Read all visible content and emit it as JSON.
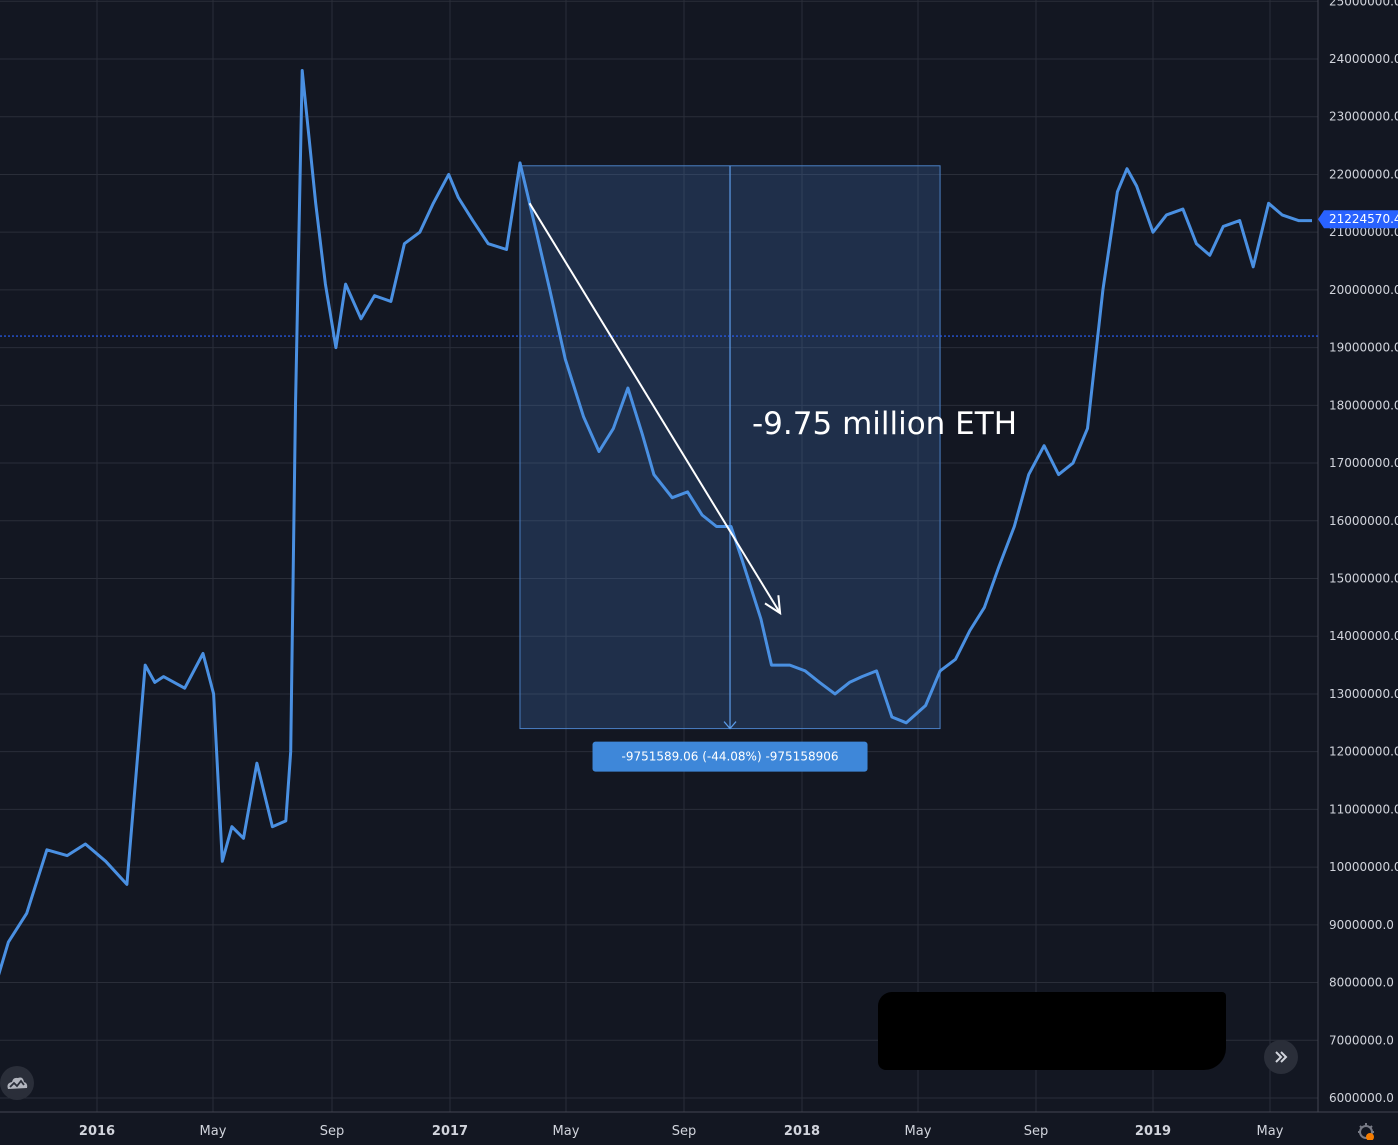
{
  "chart_data": {
    "type": "line",
    "title": "",
    "xlabel": "",
    "ylabel": "",
    "ylim": [
      6000000,
      25000000
    ],
    "y_ticks": [
      "6000000.0",
      "7000000.0",
      "8000000.0",
      "9000000.0",
      "10000000.0",
      "11000000.0",
      "12000000.0",
      "13000000.0",
      "14000000.0",
      "15000000.0",
      "16000000.0",
      "17000000.0",
      "18000000.0",
      "19000000.0",
      "20000000.0",
      "21000000.0",
      "22000000.0",
      "23000000.0",
      "24000000.0",
      "25000000.0"
    ],
    "x_ticks": [
      {
        "label": "2016",
        "year": true
      },
      {
        "label": "May",
        "year": false
      },
      {
        "label": "Sep",
        "year": false
      },
      {
        "label": "2017",
        "year": true
      },
      {
        "label": "May",
        "year": false
      },
      {
        "label": "Sep",
        "year": false
      },
      {
        "label": "2018",
        "year": true
      },
      {
        "label": "May",
        "year": false
      },
      {
        "label": "Sep",
        "year": false
      },
      {
        "label": "2019",
        "year": true
      },
      {
        "label": "May",
        "year": false
      }
    ],
    "grid": true,
    "series": [
      {
        "name": "",
        "color": "#4a90e2",
        "x": [
          "2015-08-20",
          "2015-09-01",
          "2015-09-15",
          "2015-10-01",
          "2015-10-20",
          "2015-11-10",
          "2015-12-01",
          "2015-12-20",
          "2016-01-10",
          "2016-02-01",
          "2016-02-20",
          "2016-03-01",
          "2016-03-10",
          "2016-04-01",
          "2016-04-20",
          "2016-05-01",
          "2016-05-10",
          "2016-05-20",
          "2016-06-01",
          "2016-06-15",
          "2016-07-01",
          "2016-07-15",
          "2016-07-20",
          "2016-07-25",
          "2016-08-01",
          "2016-08-15",
          "2016-08-25",
          "2016-09-01",
          "2016-09-05",
          "2016-09-15",
          "2016-10-01",
          "2016-10-15",
          "2016-11-01",
          "2016-11-15",
          "2016-12-01",
          "2016-12-15",
          "2016-12-31",
          "2017-01-10",
          "2017-01-25",
          "2017-02-10",
          "2017-03-01",
          "2017-03-15",
          "2017-03-25",
          "2017-04-01",
          "2017-04-15",
          "2017-05-01",
          "2017-05-20",
          "2017-06-05",
          "2017-06-20",
          "2017-07-05",
          "2017-07-20",
          "2017-08-01",
          "2017-08-20",
          "2017-09-05",
          "2017-09-20",
          "2017-10-05",
          "2017-10-20",
          "2017-11-01",
          "2017-11-20",
          "2017-12-01",
          "2017-12-20",
          "2018-01-05",
          "2018-01-20",
          "2018-02-05",
          "2018-02-20",
          "2018-03-05",
          "2018-03-20",
          "2018-04-05",
          "2018-04-20",
          "2018-05-10",
          "2018-05-25",
          "2018-06-10",
          "2018-06-25",
          "2018-07-10",
          "2018-07-25",
          "2018-08-10",
          "2018-08-25",
          "2018-09-10",
          "2018-09-25",
          "2018-10-10",
          "2018-10-25",
          "2018-11-10",
          "2018-11-25",
          "2018-12-05",
          "2018-12-15",
          "2019-01-01",
          "2019-01-15",
          "2019-02-01",
          "2019-02-15",
          "2019-03-01",
          "2019-03-15",
          "2019-04-01",
          "2019-04-15",
          "2019-05-01",
          "2019-05-15",
          "2019-06-01",
          "2019-06-15"
        ],
        "values": [
          7700000,
          7700000,
          7800000,
          8700000,
          9200000,
          10300000,
          10200000,
          10400000,
          10100000,
          9700000,
          13500000,
          13200000,
          13300000,
          13100000,
          13700000,
          13000000,
          10100000,
          10700000,
          10500000,
          11800000,
          10700000,
          10800000,
          12000000,
          18000000,
          23800000,
          21500000,
          20100000,
          19400000,
          19000000,
          20100000,
          19500000,
          19900000,
          19800000,
          20800000,
          21000000,
          21500000,
          22000000,
          21600000,
          21200000,
          20800000,
          20700000,
          22200000,
          21500000,
          21000000,
          20000000,
          18800000,
          17800000,
          17200000,
          17600000,
          18300000,
          17500000,
          16800000,
          16400000,
          16500000,
          16100000,
          15900000,
          15900000,
          15300000,
          14300000,
          13500000,
          13500000,
          13400000,
          13200000,
          13000000,
          13200000,
          13300000,
          13400000,
          12600000,
          12500000,
          12800000,
          13400000,
          13600000,
          14100000,
          14500000,
          15200000,
          15900000,
          16800000,
          17300000,
          16800000,
          17000000,
          17600000,
          20000000,
          21700000,
          22100000,
          21800000,
          21000000,
          21300000,
          21400000,
          20800000,
          20600000,
          21100000,
          21200000,
          20400000,
          21500000,
          21300000,
          21200000,
          21200000
        ]
      }
    ],
    "current_value_tag": "21224570.4",
    "horizontal_marker_value": 19200000,
    "annotation_text": "-9.75 million ETH",
    "measure_label": "-9751589.06 (-44.08%) -975158906",
    "measure_from": {
      "x": "2017-03-15",
      "y": 22150000
    },
    "measure_to": {
      "x": "2018-05-25",
      "y": 12400000
    },
    "arrow_from": {
      "x": "2017-03-25",
      "y": 21500000
    },
    "arrow_to": {
      "x": "2017-12-10",
      "y": 14400000
    },
    "colors": {
      "background": "#131722",
      "grid": "#2a2e39",
      "line": "#4a90e2",
      "measure_fill": "rgba(66,120,196,0.25)",
      "measure_label_bg": "#3e87d9",
      "marker_line": "#2962ff",
      "price_tag_bg": "#2962ff"
    }
  },
  "icons": {
    "logo": "tradingview-cloud-icon",
    "scroll": "double-chevron-right-icon",
    "settings": "gear-icon"
  }
}
